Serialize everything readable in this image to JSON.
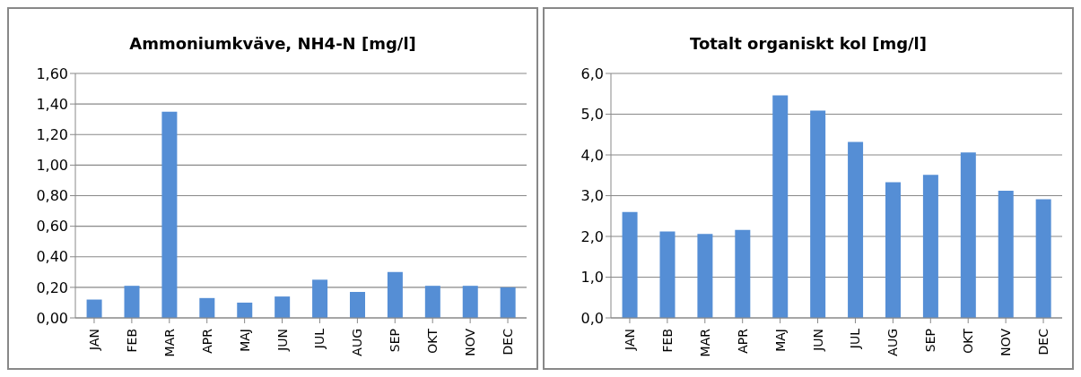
{
  "chart_data": [
    {
      "type": "bar",
      "title": "Ammoniumkväve, NH4-N [mg/l]",
      "categories": [
        "JAN",
        "FEB",
        "MAR",
        "APR",
        "MAJ",
        "JUN",
        "JUL",
        "AUG",
        "SEP",
        "OKT",
        "NOV",
        "DEC"
      ],
      "values": [
        0.12,
        0.21,
        1.35,
        0.13,
        0.1,
        0.14,
        0.25,
        0.17,
        0.3,
        0.21,
        0.21,
        0.2
      ],
      "color": "#558ed5",
      "ylim": [
        0,
        1.6
      ],
      "yticks": [
        {
          "value": 0,
          "label": "0,00"
        },
        {
          "value": 0.2,
          "label": "0,20"
        },
        {
          "value": 0.4,
          "label": "0,40"
        },
        {
          "value": 0.6,
          "label": "0,60"
        },
        {
          "value": 0.8,
          "label": "0,80"
        },
        {
          "value": 1.0,
          "label": "1,00"
        },
        {
          "value": 1.2,
          "label": "1,20"
        },
        {
          "value": 1.4,
          "label": "1,40"
        },
        {
          "value": 1.6,
          "label": "1,60"
        }
      ],
      "grid": "y"
    },
    {
      "type": "bar",
      "title": "Totalt organiskt kol [mg/l]",
      "categories": [
        "JAN",
        "FEB",
        "MAR",
        "APR",
        "MAJ",
        "JUN",
        "JUL",
        "AUG",
        "SEP",
        "OKT",
        "NOV",
        "DEC"
      ],
      "values": [
        2.6,
        2.12,
        2.06,
        2.16,
        5.46,
        5.09,
        4.32,
        3.33,
        3.51,
        4.06,
        3.12,
        2.91
      ],
      "color": "#558ed5",
      "ylim": [
        0,
        6
      ],
      "yticks": [
        {
          "value": 0,
          "label": "0,0"
        },
        {
          "value": 1,
          "label": "1,0"
        },
        {
          "value": 2,
          "label": "2,0"
        },
        {
          "value": 3,
          "label": "3,0"
        },
        {
          "value": 4,
          "label": "4,0"
        },
        {
          "value": 5,
          "label": "5,0"
        },
        {
          "value": 6,
          "label": "6,0"
        }
      ],
      "grid": "y"
    }
  ]
}
